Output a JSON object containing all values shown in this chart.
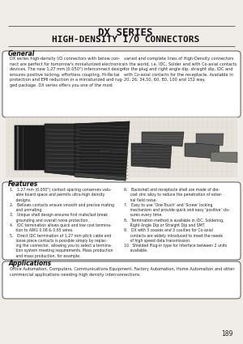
{
  "title_line1": "DX SERIES",
  "title_line2": "HIGH-DENSITY I/O CONNECTORS",
  "general_title": "General",
  "general_left": "DX series high-density I/O connectors with below con-\nnect are perfect for tomorrow's miniaturized electronics\ndevices. The new 1.27 mm (0.050\") interconnect design\nensures positive locking, effortless coupling, Hi-Re-tal\nprotection and EMI reduction in a miniaturized and rug-\nged package. DX series offers you one of the most",
  "general_right": "varied and complete lines of High-Density connectors\nin the world, i.e. IDC, Solder and with Co-axial contacts\nfor the plug and right angle dip, straight dip, IDC and\nwith Co-axial contacts for the receptacle. Available in\n20, 26, 34,50, 60, 80, 100 and 152 way.",
  "features_title": "Features",
  "features_left": "1.   1.27 mm (0.050\") contact spacing conserves valu-\n     able board space and permits ultra-high density\n     designs.\n2.   Bellows contacts ensure smooth and precise mating\n     and unmating.\n3.   Unique shell design ensures first mate/last break\n     grounding and overall noise protection.\n4.   IDC termination allows quick and low cost termina-\n     tion to AWG 0.08 & 0.65 wires.\n5.   Direct IDC termination of 1.27 mm pitch cable and\n     loose piece contacts is possible simply by replac-\n     ing the connector, allowing you to select a termina-\n     tion system meeting requirements. Mass production\n     and mass production, for example.",
  "features_right": "6.   Backshell and receptacle shell are made of die-\n     cast zinc alloy to reduce the penetration of exter-\n     nal field noise.\n7.   Easy to use 'One-Touch' and 'Screw' locking\n     mechanism and provide quick and easy 'positive' clo-\n     sures every time.\n8.   Termination method is available in IDC, Soldering,\n     Right Angle Dip or Straight Dip and SMT.\n9.   DX with 3 coaxes and 3 cavities for Co-axial\n     contacts are widely introduced to meet the needs\n     of high speed data transmission.\n10.  Shielded Plug-in type for interface between 2 units\n     available.",
  "applications_title": "Applications",
  "applications_text": "Office Automation, Computers, Communications Equipment, Factory Automation, Home Automation and other\ncommercial applications needing high density interconnections.",
  "page_number": "189",
  "bg_color": "#f0ede8",
  "title_color": "#111111",
  "section_title_color": "#111111",
  "text_color": "#222222",
  "box_edge_color": "#555555",
  "rule_color": "#666666"
}
